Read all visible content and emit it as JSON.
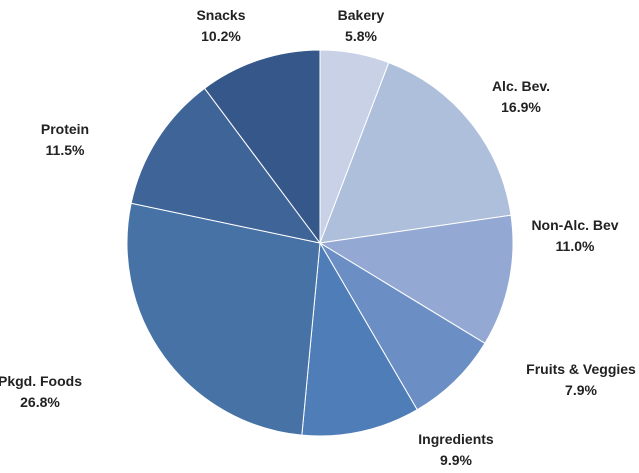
{
  "chart_data": {
    "type": "pie",
    "title": "",
    "slices": [
      {
        "label": "Bakery",
        "value_label": "5.8%",
        "value": 5.8,
        "color": "#C8D1E6"
      },
      {
        "label": "Alc. Bev.",
        "value_label": "16.9%",
        "value": 16.9,
        "color": "#AEBFDC"
      },
      {
        "label": "Non-Alc. Bev",
        "value_label": "11.0%",
        "value": 11.0,
        "color": "#93A9D4"
      },
      {
        "label": "Fruits & Veggies",
        "value_label": "7.9%",
        "value": 7.9,
        "color": "#6B8FC5"
      },
      {
        "label": "Ingredients",
        "value_label": "9.9%",
        "value": 9.9,
        "color": "#4F7DB8"
      },
      {
        "label": "Pkgd. Foods",
        "value_label": "26.8%",
        "value": 26.8,
        "color": "#4672A6"
      },
      {
        "label": "Protein",
        "value_label": "11.5%",
        "value": 11.5,
        "color": "#3F6598"
      },
      {
        "label": "Snacks",
        "value_label": "10.2%",
        "value": 10.2,
        "color": "#35578A"
      }
    ],
    "start_angle": "12 o'clock",
    "direction": "clockwise",
    "legend": "none"
  }
}
